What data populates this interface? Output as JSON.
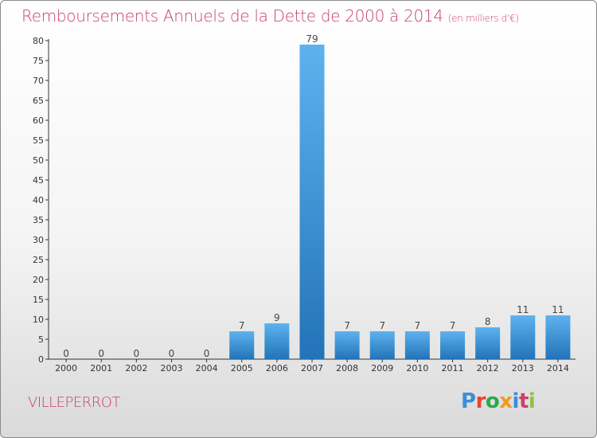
{
  "header": {
    "title": "Remboursements Annuels de la Dette de 2000 à 2014",
    "unit": "(en milliers d'€)"
  },
  "footer": {
    "commune": "VILLEPERROT",
    "logo_text": "Proxiti"
  },
  "colors": {
    "title": "#c8416c",
    "bar_light": "#5db3ee",
    "bar_dark": "#2273b8",
    "logo": [
      "#3a8fd6",
      "#e8452c",
      "#2aa84a",
      "#f29a1a",
      "#3a8fd6",
      "#c8416c",
      "#8bc34a"
    ]
  },
  "chart_data": {
    "type": "bar",
    "categories": [
      "2000",
      "2001",
      "2002",
      "2003",
      "2004",
      "2005",
      "2006",
      "2007",
      "2008",
      "2009",
      "2010",
      "2011",
      "2012",
      "2013",
      "2014"
    ],
    "values": [
      0,
      0,
      0,
      0,
      0,
      7,
      9,
      79,
      7,
      7,
      7,
      7,
      8,
      11,
      11
    ],
    "ylim": [
      0,
      80
    ],
    "yticks": [
      0,
      5,
      10,
      15,
      20,
      25,
      30,
      35,
      40,
      45,
      50,
      55,
      60,
      65,
      70,
      75,
      80
    ],
    "grid": false,
    "data_labels": true
  }
}
